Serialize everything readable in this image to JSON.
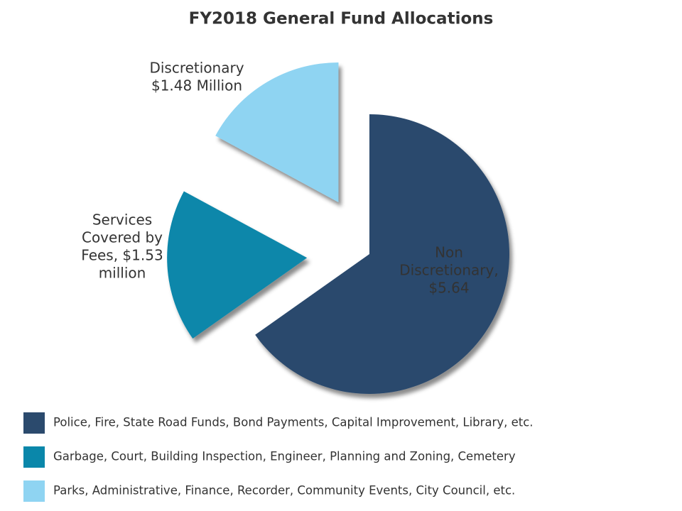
{
  "chart_data": {
    "type": "pie",
    "title": "FY2018 General Fund Allocations",
    "categories": [
      "Police, Fire, State Road Funds, Bond Payments, Capital Improvement, Library, etc.",
      "Garbage, Court, Building Inspection, Engineer, Planning and Zoning, Cemetery",
      "Parks, Administrative, Finance, Recorder, Community Events, City Council, etc."
    ],
    "values": [
      5.64,
      1.53,
      1.48
    ],
    "value_labels": [
      [
        "Non",
        "Discretionary,",
        "$5.64"
      ],
      [
        "Services",
        "Covered by",
        "Fees,  $1.53",
        "million"
      ],
      [
        "Discretionary",
        "$1.48 Million"
      ]
    ],
    "colors": [
      "#2b4a6d",
      "#0a87aa",
      "#8fd4f2"
    ]
  }
}
